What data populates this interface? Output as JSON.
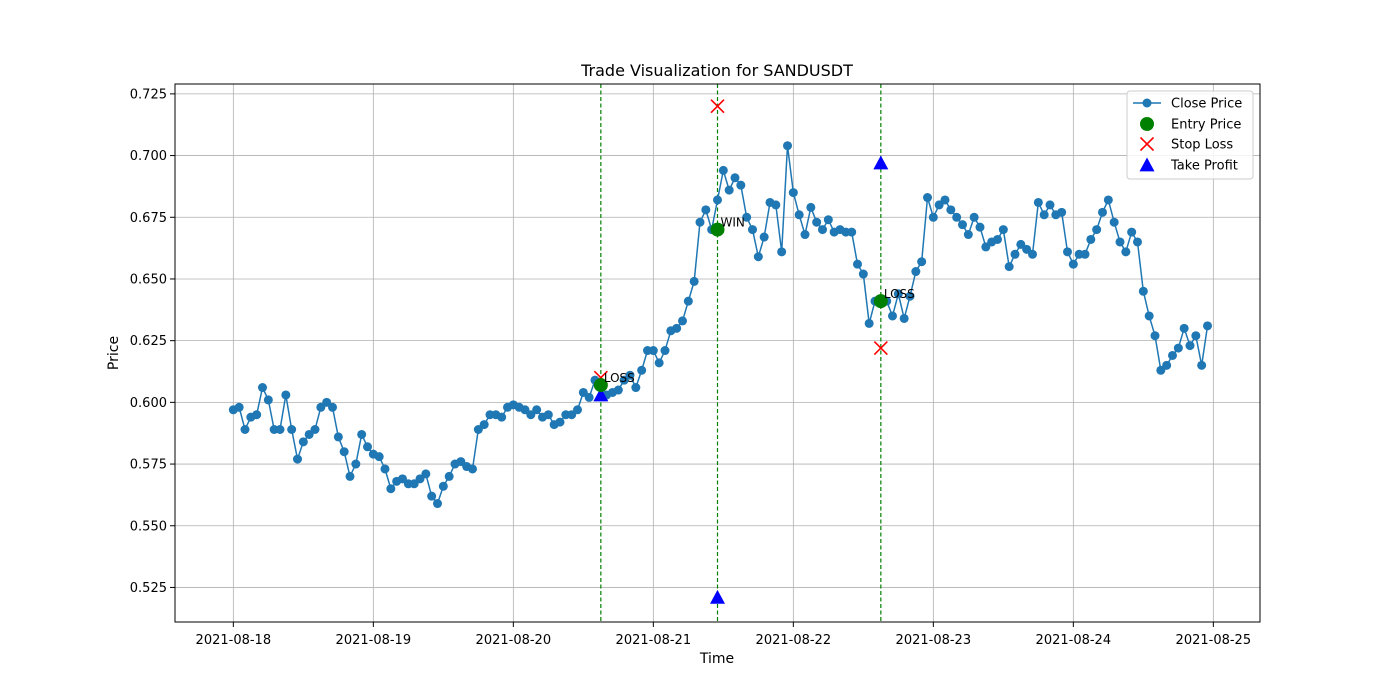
{
  "chart_data": {
    "type": "line",
    "title": "Trade Visualization for SANDUSDT",
    "xlabel": "Time",
    "ylabel": "Price",
    "xlim": [
      "2021-08-17T14:00",
      "2021-08-25T08:00"
    ],
    "ylim": [
      0.511,
      0.729
    ],
    "grid": true,
    "legend_position": "top-right",
    "x_ticks": [
      "2021-08-18",
      "2021-08-19",
      "2021-08-20",
      "2021-08-21",
      "2021-08-22",
      "2021-08-23",
      "2021-08-24",
      "2021-08-25"
    ],
    "y_ticks": [
      0.525,
      0.55,
      0.575,
      0.6,
      0.625,
      0.65,
      0.675,
      0.7,
      0.725
    ],
    "y_tick_labels": [
      "0.525",
      "0.550",
      "0.575",
      "0.600",
      "0.625",
      "0.650",
      "0.675",
      "0.700",
      "0.725"
    ],
    "colors": {
      "close": "#1f77b4",
      "entry": "#008000",
      "stop": "#ff0000",
      "take": "#0000ff",
      "vline": "#008000",
      "grid": "#b0b0b0"
    },
    "series": [
      {
        "name": "Close Price",
        "x_start": "2021-08-18T00:00",
        "x_step_hours": 1,
        "values": [
          0.597,
          0.598,
          0.589,
          0.594,
          0.595,
          0.606,
          0.601,
          0.589,
          0.589,
          0.603,
          0.589,
          0.577,
          0.584,
          0.587,
          0.589,
          0.598,
          0.6,
          0.598,
          0.586,
          0.58,
          0.57,
          0.575,
          0.587,
          0.582,
          0.579,
          0.578,
          0.573,
          0.565,
          0.568,
          0.569,
          0.567,
          0.567,
          0.569,
          0.571,
          0.562,
          0.559,
          0.566,
          0.57,
          0.575,
          0.576,
          0.574,
          0.573,
          0.589,
          0.591,
          0.595,
          0.595,
          0.594,
          0.598,
          0.599,
          0.598,
          0.597,
          0.595,
          0.597,
          0.594,
          0.595,
          0.591,
          0.592,
          0.595,
          0.595,
          0.597,
          0.604,
          0.602,
          0.609,
          0.607,
          0.603,
          0.604,
          0.605,
          0.609,
          0.611,
          0.606,
          0.613,
          0.621,
          0.621,
          0.616,
          0.621,
          0.629,
          0.63,
          0.633,
          0.641,
          0.649,
          0.673,
          0.678,
          0.67,
          0.682,
          0.694,
          0.686,
          0.691,
          0.688,
          0.675,
          0.67,
          0.659,
          0.667,
          0.681,
          0.68,
          0.661,
          0.704,
          0.685,
          0.676,
          0.668,
          0.679,
          0.673,
          0.67,
          0.674,
          0.669,
          0.67,
          0.669,
          0.669,
          0.656,
          0.652,
          0.632,
          0.641,
          0.64,
          0.641,
          0.635,
          0.644,
          0.634,
          0.643,
          0.653,
          0.657,
          0.683,
          0.675,
          0.68,
          0.682,
          0.678,
          0.675,
          0.672,
          0.668,
          0.675,
          0.671,
          0.663,
          0.665,
          0.666,
          0.67,
          0.655,
          0.66,
          0.664,
          0.662,
          0.66,
          0.681,
          0.676,
          0.68,
          0.676,
          0.677,
          0.661,
          0.656,
          0.66,
          0.66,
          0.666,
          0.67,
          0.677,
          0.682,
          0.673,
          0.665,
          0.661,
          0.669,
          0.665,
          0.645,
          0.635,
          0.627,
          0.613,
          0.615,
          0.619,
          0.622,
          0.63,
          0.623,
          0.627,
          0.615,
          0.631
        ]
      },
      {
        "name": "Entry Price"
      },
      {
        "name": "Stop Loss"
      },
      {
        "name": "Take Profit"
      }
    ],
    "trades": [
      {
        "time": "2021-08-20T15:00",
        "entry": 0.607,
        "stop_loss": 0.61,
        "take_profit": 0.603,
        "result": "LOSS"
      },
      {
        "time": "2021-08-21T11:00",
        "entry": 0.67,
        "stop_loss": 0.72,
        "take_profit": 0.521,
        "result": "WIN"
      },
      {
        "time": "2021-08-22T15:00",
        "entry": 0.641,
        "stop_loss": 0.622,
        "take_profit": 0.697,
        "result": "LOSS"
      }
    ]
  }
}
